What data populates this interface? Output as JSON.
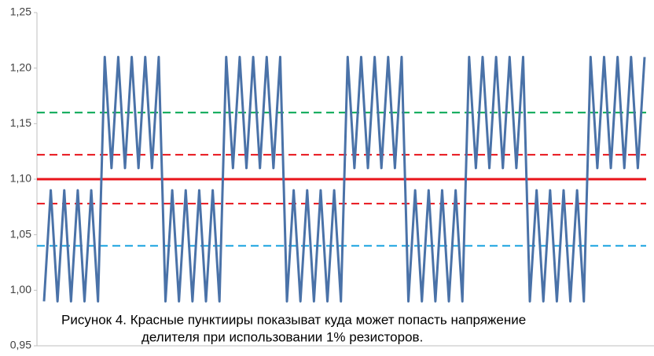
{
  "chart_data": {
    "type": "line",
    "ylim": [
      0.95,
      1.25
    ],
    "yticks": [
      {
        "value": 0.95,
        "label": "0,95"
      },
      {
        "value": 1.0,
        "label": "1,00"
      },
      {
        "value": 1.05,
        "label": "1,05"
      },
      {
        "value": 1.1,
        "label": "1,10"
      },
      {
        "value": 1.15,
        "label": "1,15"
      },
      {
        "value": 1.2,
        "label": "1,20"
      },
      {
        "value": 1.25,
        "label": "1,25"
      }
    ],
    "grid": false,
    "series": [
      {
        "color": "#4a72a8",
        "values": [
          0.99,
          1.09,
          0.99,
          1.09,
          0.99,
          1.09,
          0.99,
          1.09,
          0.99,
          1.21,
          1.11,
          1.21,
          1.11,
          1.21,
          1.11,
          1.21,
          1.11,
          1.21,
          0.99,
          1.09,
          0.99,
          1.09,
          0.99,
          1.09,
          0.99,
          1.09,
          0.99,
          1.21,
          1.11,
          1.21,
          1.11,
          1.21,
          1.11,
          1.21,
          1.11,
          1.21,
          0.99,
          1.09,
          0.99,
          1.09,
          0.99,
          1.09,
          0.99,
          1.09,
          0.99,
          1.21,
          1.11,
          1.21,
          1.11,
          1.21,
          1.11,
          1.21,
          1.11,
          1.21,
          0.99,
          1.09,
          0.99,
          1.09,
          0.99,
          1.09,
          0.99,
          1.09,
          0.99,
          1.21,
          1.11,
          1.21,
          1.11,
          1.21,
          1.11,
          1.21,
          1.11,
          1.21,
          0.99,
          1.09,
          0.99,
          1.09,
          0.99,
          1.09,
          0.99,
          1.09,
          0.99,
          1.21,
          1.11,
          1.21,
          1.11,
          1.21,
          1.11,
          1.21,
          1.11,
          1.21
        ]
      }
    ],
    "reference_lines": [
      {
        "value": 1.16,
        "color": "#00a550",
        "style": "dashed"
      },
      {
        "value": 1.122,
        "color": "#e8141b",
        "style": "dashed"
      },
      {
        "value": 1.1,
        "color": "#e8141b",
        "style": "solid"
      },
      {
        "value": 1.078,
        "color": "#e8141b",
        "style": "dashed"
      },
      {
        "value": 1.04,
        "color": "#1aa3e0",
        "style": "dashed"
      }
    ],
    "annotations": [
      "Рисунок 4. Красные пунктииры показыват куда может попасть напряжение",
      "делителя при использовании 1% резисторов."
    ]
  }
}
